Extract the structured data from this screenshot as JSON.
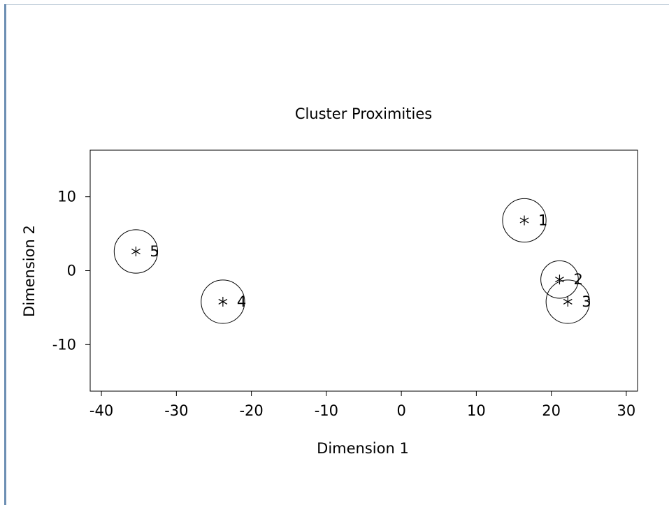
{
  "chart_data": {
    "type": "scatter",
    "title": "Cluster Proximities",
    "xlabel": "Dimension 1",
    "ylabel": "Dimension 2",
    "xlim": [
      -41.5,
      31.5
    ],
    "ylim": [
      -16.3,
      16.3
    ],
    "xticks": [
      -40,
      -30,
      -20,
      -10,
      0,
      10,
      20,
      30
    ],
    "yticks": [
      -10,
      0,
      10
    ],
    "marker": "*",
    "grid": false,
    "points": [
      {
        "label": "1",
        "x": 16.4,
        "y": 6.8,
        "radius": 2.9
      },
      {
        "label": "2",
        "x": 21.1,
        "y": -1.2,
        "radius": 2.5
      },
      {
        "label": "3",
        "x": 22.2,
        "y": -4.2,
        "radius": 2.9
      },
      {
        "label": "4",
        "x": -23.8,
        "y": -4.2,
        "radius": 2.9
      },
      {
        "label": "5",
        "x": -35.4,
        "y": 2.6,
        "radius": 2.9
      }
    ]
  },
  "colors": {
    "axis": "#000000",
    "marker": "#000000",
    "window_border": "#6d8fb3"
  }
}
